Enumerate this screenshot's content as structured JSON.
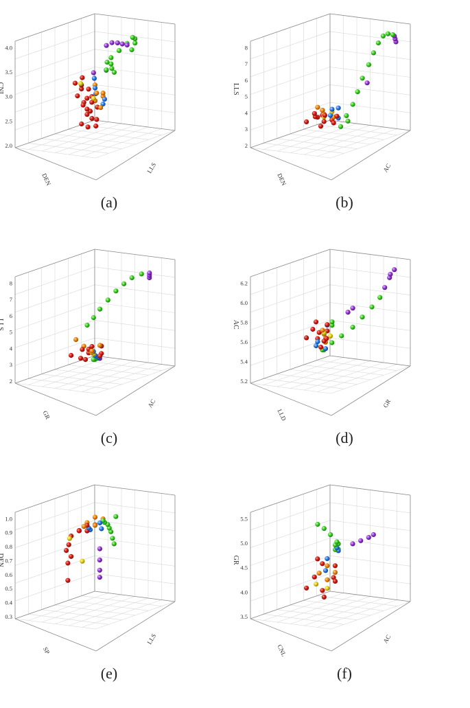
{
  "colors": {
    "red": "#d42018",
    "orange": "#f08a10",
    "yellow": "#e8d21a",
    "green": "#3fd028",
    "blue": "#2f7fe8",
    "purple": "#9a3fd8"
  },
  "chart_data": [
    {
      "id": "a",
      "type": "scatter",
      "caption": "(a)",
      "zlabel": "CNL",
      "xlabel": "DEN",
      "ylabel": "LLS",
      "zticks": [
        "2.0",
        "2.5",
        "3.0",
        "3.5",
        "4.0"
      ],
      "grid": true,
      "series": [
        {
          "color": "red",
          "x": [
            0.42,
            0.38,
            0.46,
            0.33,
            0.5,
            0.41,
            0.36,
            0.44,
            0.48,
            0.39,
            0.3,
            0.52,
            0.43,
            0.35,
            0.47,
            0.4,
            0.45,
            0.37,
            0.5,
            0.34
          ],
          "y": [
            0.48,
            0.52,
            0.44,
            0.5,
            0.46,
            0.55,
            0.42,
            0.5,
            0.53,
            0.47,
            0.45,
            0.51,
            0.4,
            0.56,
            0.49,
            0.43,
            0.57,
            0.48,
            0.42,
            0.5
          ],
          "z": [
            0.25,
            0.32,
            0.4,
            0.18,
            0.35,
            0.22,
            0.45,
            0.28,
            0.12,
            0.38,
            0.6,
            0.3,
            0.5,
            0.15,
            0.42,
            0.55,
            0.2,
            0.36,
            0.48,
            0.65
          ]
        },
        {
          "color": "orange",
          "x": [
            0.55,
            0.6,
            0.52,
            0.58,
            0.62,
            0.5,
            0.57
          ],
          "y": [
            0.45,
            0.5,
            0.55,
            0.42,
            0.48,
            0.52,
            0.46
          ],
          "z": [
            0.35,
            0.42,
            0.3,
            0.5,
            0.38,
            0.45,
            0.28
          ]
        },
        {
          "color": "yellow",
          "x": [
            0.48,
            0.36
          ],
          "y": [
            0.5,
            0.46
          ],
          "z": [
            0.4,
            0.58
          ]
        },
        {
          "color": "green",
          "x": [
            0.58,
            0.64,
            0.7,
            0.75,
            0.8,
            0.84,
            0.86,
            0.62,
            0.55,
            0.5,
            0.66,
            0.72
          ],
          "y": [
            0.62,
            0.66,
            0.7,
            0.72,
            0.7,
            0.66,
            0.6,
            0.58,
            0.6,
            0.64,
            0.55,
            0.52
          ],
          "z": [
            0.8,
            0.86,
            0.92,
            0.97,
            0.94,
            0.88,
            0.8,
            0.72,
            0.76,
            0.7,
            0.66,
            0.6
          ]
        },
        {
          "color": "blue",
          "x": [
            0.5,
            0.56,
            0.6,
            0.44,
            0.62,
            0.54
          ],
          "y": [
            0.5,
            0.45,
            0.52,
            0.55,
            0.48,
            0.6
          ],
          "z": [
            0.5,
            0.42,
            0.36,
            0.62,
            0.3,
            0.68
          ]
        },
        {
          "color": "purple",
          "x": [
            0.42,
            0.46,
            0.5,
            0.54,
            0.58,
            0.38
          ],
          "y": [
            0.72,
            0.75,
            0.78,
            0.8,
            0.82,
            0.6
          ],
          "z": [
            0.98,
            1.0,
            0.99,
            0.97,
            0.95,
            0.7
          ]
        }
      ]
    },
    {
      "id": "b",
      "type": "scatter",
      "caption": "(b)",
      "zlabel": "LLS",
      "xlabel": "DEN",
      "ylabel": "AC",
      "zticks": [
        "2",
        "3",
        "4",
        "5",
        "6",
        "7",
        "8"
      ],
      "grid": true,
      "series": [
        {
          "color": "red",
          "x": [
            0.3,
            0.36,
            0.42,
            0.48,
            0.54,
            0.38,
            0.46,
            0.52,
            0.34,
            0.44,
            0.5,
            0.4
          ],
          "y": [
            0.4,
            0.45,
            0.5,
            0.42,
            0.48,
            0.55,
            0.38,
            0.52,
            0.46,
            0.44,
            0.58,
            0.5
          ],
          "z": [
            0.2,
            0.24,
            0.18,
            0.22,
            0.16,
            0.26,
            0.2,
            0.14,
            0.28,
            0.12,
            0.22,
            0.3
          ]
        },
        {
          "color": "orange",
          "x": [
            0.4,
            0.46,
            0.52,
            0.36,
            0.58
          ],
          "y": [
            0.5,
            0.46,
            0.52,
            0.48,
            0.44
          ],
          "z": [
            0.3,
            0.24,
            0.2,
            0.34,
            0.18
          ]
        },
        {
          "color": "yellow",
          "x": [
            0.44,
            0.5
          ],
          "y": [
            0.48,
            0.52
          ],
          "z": [
            0.22,
            0.26
          ]
        },
        {
          "color": "green",
          "x": [
            0.6,
            0.66,
            0.7,
            0.74,
            0.78,
            0.8,
            0.82,
            0.84,
            0.86,
            0.88,
            0.72,
            0.68
          ],
          "y": [
            0.6,
            0.62,
            0.64,
            0.66,
            0.7,
            0.74,
            0.78,
            0.82,
            0.86,
            0.9,
            0.5,
            0.45
          ],
          "z": [
            0.2,
            0.3,
            0.42,
            0.55,
            0.68,
            0.8,
            0.9,
            0.97,
            0.99,
            0.98,
            0.1,
            0.05
          ]
        },
        {
          "color": "blue",
          "x": [
            0.5,
            0.56,
            0.62,
            0.46
          ],
          "y": [
            0.5,
            0.54,
            0.48,
            0.56
          ],
          "z": [
            0.22,
            0.18,
            0.26,
            0.3
          ]
        },
        {
          "color": "purple",
          "x": [
            0.9,
            0.93,
            0.96,
            0.76
          ],
          "y": [
            0.9,
            0.88,
            0.86,
            0.7
          ],
          "z": [
            0.96,
            0.92,
            0.88,
            0.5
          ]
        }
      ]
    },
    {
      "id": "c",
      "type": "scatter",
      "caption": "(c)",
      "zlabel": "LLS",
      "xlabel": "GR",
      "ylabel": "AC",
      "zticks": [
        "2",
        "3",
        "4",
        "5",
        "6",
        "7",
        "8"
      ],
      "grid": true,
      "series": [
        {
          "color": "red",
          "x": [
            0.3,
            0.36,
            0.42,
            0.48,
            0.54,
            0.6,
            0.66,
            0.4,
            0.5,
            0.34
          ],
          "y": [
            0.4,
            0.46,
            0.5,
            0.44,
            0.52,
            0.48,
            0.42,
            0.56,
            0.38,
            0.5
          ],
          "z": [
            0.22,
            0.18,
            0.26,
            0.2,
            0.16,
            0.24,
            0.14,
            0.3,
            0.12,
            0.28
          ]
        },
        {
          "color": "orange",
          "x": [
            0.38,
            0.44,
            0.5,
            0.56,
            0.32
          ],
          "y": [
            0.48,
            0.52,
            0.46,
            0.5,
            0.44
          ],
          "z": [
            0.3,
            0.24,
            0.2,
            0.26,
            0.38
          ]
        },
        {
          "color": "yellow",
          "x": [
            0.46,
            0.52
          ],
          "y": [
            0.5,
            0.46
          ],
          "z": [
            0.22,
            0.18
          ]
        },
        {
          "color": "green",
          "x": [
            0.3,
            0.34,
            0.38,
            0.44,
            0.5,
            0.56,
            0.62,
            0.7,
            0.58,
            0.64,
            0.72
          ],
          "y": [
            0.6,
            0.64,
            0.68,
            0.72,
            0.76,
            0.8,
            0.84,
            0.88,
            0.4,
            0.36,
            0.3
          ],
          "z": [
            0.55,
            0.62,
            0.7,
            0.78,
            0.86,
            0.92,
            0.97,
            0.99,
            0.1,
            0.08,
            0.06
          ]
        },
        {
          "color": "blue",
          "x": [
            0.48,
            0.54,
            0.62,
            0.7
          ],
          "y": [
            0.5,
            0.46,
            0.4,
            0.34
          ],
          "z": [
            0.22,
            0.16,
            0.12,
            0.08
          ]
        },
        {
          "color": "purple",
          "x": [
            0.78,
            0.82,
            0.86,
            0.76
          ],
          "y": [
            0.9,
            0.86,
            0.82,
            0.3
          ],
          "z": [
            0.98,
            0.94,
            0.9,
            0.05
          ]
        }
      ]
    },
    {
      "id": "d",
      "type": "scatter",
      "caption": "(d)",
      "zlabel": "AC",
      "xlabel": "LLD",
      "ylabel": "GR",
      "zticks": [
        "5.2",
        "5.4",
        "5.6",
        "5.8",
        "6.0",
        "6.2"
      ],
      "grid": true,
      "series": [
        {
          "color": "red",
          "x": [
            0.3,
            0.34,
            0.38,
            0.42,
            0.46,
            0.5,
            0.36,
            0.44,
            0.4,
            0.48
          ],
          "y": [
            0.4,
            0.44,
            0.48,
            0.42,
            0.5,
            0.46,
            0.52,
            0.38,
            0.55,
            0.44
          ],
          "z": [
            0.4,
            0.48,
            0.44,
            0.36,
            0.5,
            0.42,
            0.3,
            0.52,
            0.38,
            0.32
          ]
        },
        {
          "color": "orange",
          "x": [
            0.4,
            0.46,
            0.52,
            0.56
          ],
          "y": [
            0.5,
            0.46,
            0.42,
            0.38
          ],
          "z": [
            0.46,
            0.4,
            0.34,
            0.28
          ]
        },
        {
          "color": "yellow",
          "x": [
            0.44,
            0.48
          ],
          "y": [
            0.48,
            0.52
          ],
          "z": [
            0.42,
            0.38
          ]
        },
        {
          "color": "green",
          "x": [
            0.5,
            0.56,
            0.62,
            0.68,
            0.74,
            0.78,
            0.82,
            0.84,
            0.42,
            0.46
          ],
          "y": [
            0.4,
            0.36,
            0.4,
            0.46,
            0.54,
            0.62,
            0.7,
            0.78,
            0.6,
            0.56
          ],
          "z": [
            0.22,
            0.2,
            0.26,
            0.32,
            0.4,
            0.5,
            0.6,
            0.7,
            0.55,
            0.5
          ]
        },
        {
          "color": "blue",
          "x": [
            0.38,
            0.44,
            0.5,
            0.34
          ],
          "y": [
            0.44,
            0.5,
            0.46,
            0.5
          ],
          "z": [
            0.3,
            0.26,
            0.48,
            0.36
          ]
        },
        {
          "color": "purple",
          "x": [
            0.86,
            0.88,
            0.9,
            0.87,
            0.6,
            0.62
          ],
          "y": [
            0.82,
            0.86,
            0.9,
            0.88,
            0.62,
            0.66
          ],
          "z": [
            0.8,
            0.9,
            0.98,
            0.94,
            0.6,
            0.64
          ]
        }
      ]
    },
    {
      "id": "e",
      "type": "scatter",
      "caption": "(e)",
      "zlabel": "DEN",
      "xlabel": "SP",
      "ylabel": "LLS",
      "zticks": [
        "0.3",
        "0.4",
        "0.5",
        "0.6",
        "0.7",
        "0.8",
        "0.9",
        "1.0"
      ],
      "grid": true,
      "series": [
        {
          "color": "red",
          "x": [
            0.2,
            0.26,
            0.32,
            0.38,
            0.44,
            0.5,
            0.24,
            0.3,
            0.36,
            0.22,
            0.28
          ],
          "y": [
            0.5,
            0.54,
            0.48,
            0.52,
            0.46,
            0.5,
            0.4,
            0.36,
            0.3,
            0.45,
            0.42
          ],
          "z": [
            0.82,
            0.86,
            0.84,
            0.88,
            0.8,
            0.85,
            0.65,
            0.5,
            0.3,
            0.72,
            0.58
          ]
        },
        {
          "color": "orange",
          "x": [
            0.34,
            0.4,
            0.46,
            0.52,
            0.58
          ],
          "y": [
            0.52,
            0.5,
            0.54,
            0.48,
            0.52
          ],
          "z": [
            0.88,
            0.9,
            0.86,
            0.92,
            0.89
          ]
        },
        {
          "color": "yellow",
          "x": [
            0.18,
            0.4
          ],
          "y": [
            0.5,
            0.44
          ],
          "z": [
            0.8,
            0.5
          ]
        },
        {
          "color": "green",
          "x": [
            0.56,
            0.62,
            0.68,
            0.72,
            0.76,
            0.8,
            0.84,
            0.66
          ],
          "y": [
            0.54,
            0.5,
            0.48,
            0.46,
            0.44,
            0.42,
            0.4,
            0.6
          ],
          "z": [
            0.88,
            0.84,
            0.8,
            0.75,
            0.7,
            0.62,
            0.55,
            0.9
          ]
        },
        {
          "color": "blue",
          "x": [
            0.42,
            0.48,
            0.54,
            0.6
          ],
          "y": [
            0.5,
            0.46,
            0.52,
            0.48
          ],
          "z": [
            0.84,
            0.8,
            0.86,
            0.78
          ]
        },
        {
          "color": "purple",
          "x": [
            0.66,
            0.7,
            0.74,
            0.76
          ],
          "y": [
            0.4,
            0.36,
            0.32,
            0.3
          ],
          "z": [
            0.55,
            0.42,
            0.3,
            0.22
          ]
        }
      ]
    },
    {
      "id": "f",
      "type": "scatter",
      "caption": "(f)",
      "zlabel": "GR",
      "xlabel": "CNL",
      "ylabel": "AC",
      "zticks": [
        "3.5",
        "4.0",
        "4.5",
        "5.0",
        "5.5"
      ],
      "grid": true,
      "series": [
        {
          "color": "red",
          "x": [
            0.3,
            0.36,
            0.42,
            0.48,
            0.54,
            0.6,
            0.38,
            0.46,
            0.5
          ],
          "y": [
            0.4,
            0.44,
            0.48,
            0.42,
            0.5,
            0.46,
            0.54,
            0.38,
            0.56
          ],
          "z": [
            0.25,
            0.35,
            0.2,
            0.45,
            0.3,
            0.4,
            0.15,
            0.5,
            0.28
          ]
        },
        {
          "color": "orange",
          "x": [
            0.4,
            0.46,
            0.52,
            0.58
          ],
          "y": [
            0.46,
            0.5,
            0.44,
            0.48
          ],
          "z": [
            0.38,
            0.3,
            0.42,
            0.34
          ]
        },
        {
          "color": "yellow",
          "x": [
            0.36,
            0.44
          ],
          "y": [
            0.46,
            0.52
          ],
          "z": [
            0.28,
            0.22
          ]
        },
        {
          "color": "green",
          "x": [
            0.34,
            0.38,
            0.42,
            0.46,
            0.5,
            0.56,
            0.62,
            0.66
          ],
          "y": [
            0.5,
            0.54,
            0.58,
            0.62,
            0.56,
            0.5,
            0.48,
            0.44
          ],
          "z": [
            0.9,
            0.85,
            0.78,
            0.7,
            0.65,
            0.58,
            0.62,
            0.55
          ]
        },
        {
          "color": "blue",
          "x": [
            0.44,
            0.5,
            0.56,
            0.62
          ],
          "y": [
            0.5,
            0.46,
            0.52,
            0.48
          ],
          "z": [
            0.4,
            0.5,
            0.6,
            0.55
          ]
        },
        {
          "color": "purple",
          "x": [
            0.72,
            0.78,
            0.84,
            0.88
          ],
          "y": [
            0.56,
            0.6,
            0.64,
            0.66
          ],
          "z": [
            0.6,
            0.62,
            0.64,
            0.66
          ]
        }
      ]
    }
  ]
}
